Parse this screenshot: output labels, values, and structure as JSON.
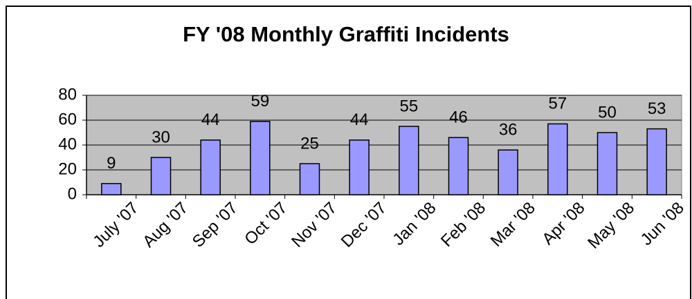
{
  "chart_data": {
    "type": "bar",
    "title": "FY '08 Monthly Graffiti Incidents",
    "categories": [
      "July '07",
      "Aug '07",
      "Sep '07",
      "Oct '07",
      "Nov '07",
      "Dec '07",
      "Jan '08",
      "Feb '08",
      "Mar '08",
      "Apr '08",
      "May '08",
      "Jun '08"
    ],
    "values": [
      9,
      30,
      44,
      59,
      25,
      44,
      55,
      46,
      36,
      57,
      50,
      53
    ],
    "color": "#9999ff",
    "ylim": [
      0,
      80
    ],
    "yticks": [
      0,
      20,
      40,
      60,
      80
    ],
    "grid": true
  }
}
